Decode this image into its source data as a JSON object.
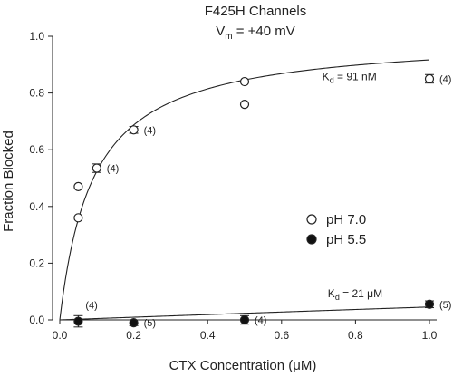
{
  "chart_data": {
    "type": "scatter",
    "title": "F425H Channels",
    "subtitle": {
      "prefix": "V",
      "sub": "m",
      "suffix": " = +40 mV"
    },
    "xlabel": "CTX Concentration (μM)",
    "ylabel": "Fraction Blocked",
    "xlim": [
      0.0,
      1.0
    ],
    "ylim": [
      0.0,
      1.0
    ],
    "xticks": [
      "0.0",
      "0.2",
      "0.4",
      "0.6",
      "0.8",
      "1.0"
    ],
    "yticks": [
      "0.0",
      "0.2",
      "0.4",
      "0.6",
      "0.8",
      "1.0"
    ],
    "grid": false,
    "legend": {
      "placement": "center-right"
    },
    "series": [
      {
        "name": "pH 7.0",
        "marker": "open-circle",
        "points": [
          {
            "x": 0.05,
            "y": 0.47,
            "err": 0,
            "n": ""
          },
          {
            "x": 0.05,
            "y": 0.36,
            "err": 0,
            "n": ""
          },
          {
            "x": 0.1,
            "y": 0.535,
            "err": 0.015,
            "n": "(4)"
          },
          {
            "x": 0.2,
            "y": 0.67,
            "err": 0.012,
            "n": "(4)"
          },
          {
            "x": 0.5,
            "y": 0.84,
            "err": 0,
            "n": ""
          },
          {
            "x": 0.5,
            "y": 0.76,
            "err": 0,
            "n": ""
          },
          {
            "x": 1.0,
            "y": 0.85,
            "err": 0.015,
            "n": "(4)"
          }
        ],
        "fit": {
          "model": "x / (x + Kd)",
          "Kd": 0.091,
          "label_prefix": "K",
          "label_sub": "d",
          "label_suffix": " = 91 nM"
        }
      },
      {
        "name": "pH 5.5",
        "marker": "filled-circle",
        "points": [
          {
            "x": 0.05,
            "y": -0.005,
            "err": 0.02,
            "n": "(4)"
          },
          {
            "x": 0.2,
            "y": -0.01,
            "err": 0.01,
            "n": "(5)"
          },
          {
            "x": 0.5,
            "y": 0.0,
            "err": 0.015,
            "n": "(4)"
          },
          {
            "x": 1.0,
            "y": 0.055,
            "err": 0.012,
            "n": "(5)"
          }
        ],
        "fit": {
          "model": "x / (x + Kd)",
          "Kd": 21,
          "label_prefix": "K",
          "label_sub": "d",
          "label_suffix": " = 21 μM"
        }
      }
    ]
  }
}
